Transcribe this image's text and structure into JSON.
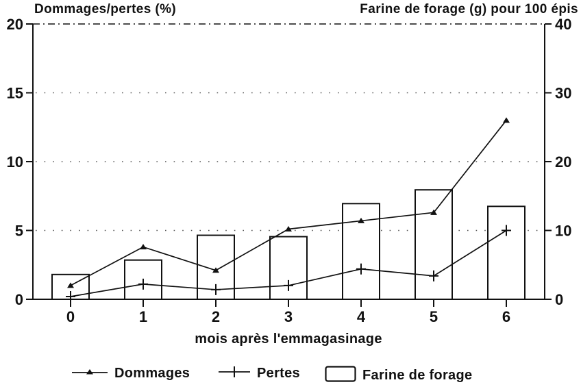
{
  "chart_data": {
    "type": "bar",
    "subtype": "combo-line-bar",
    "title_left": "Dommages/pertes (%)",
    "title_right": "Farine de forage (g) pour 100 épis",
    "xlabel": "mois après l'emmagasinage",
    "categories": [
      0,
      1,
      2,
      3,
      4,
      5,
      6
    ],
    "left_axis": {
      "ticks": [
        0,
        5,
        10,
        15,
        20
      ],
      "range": [
        0,
        20
      ]
    },
    "right_axis": {
      "ticks": [
        0,
        10,
        20,
        30,
        40
      ],
      "range": [
        0,
        40
      ]
    },
    "grid": {
      "on": true,
      "style": "sparse-dotted-horizontal",
      "left_values": [
        5,
        10,
        15
      ]
    },
    "series": [
      {
        "name": "Dommages",
        "type": "line",
        "marker": "triangle",
        "axis": "left",
        "values": [
          1.0,
          3.8,
          2.1,
          5.1,
          5.7,
          6.3,
          13.0
        ]
      },
      {
        "name": "Pertes",
        "type": "line",
        "marker": "plus",
        "axis": "left",
        "values": [
          0.2,
          1.1,
          0.7,
          1.0,
          2.2,
          1.7,
          5.0
        ]
      },
      {
        "name": "Farine de forage",
        "type": "bar",
        "axis": "right",
        "values": [
          3.6,
          5.7,
          9.3,
          9.1,
          13.9,
          15.9,
          13.5
        ]
      }
    ],
    "legend_position": "bottom",
    "colors": {
      "ink": "#111111",
      "background": "#ffffff",
      "grid": "#555555"
    }
  }
}
